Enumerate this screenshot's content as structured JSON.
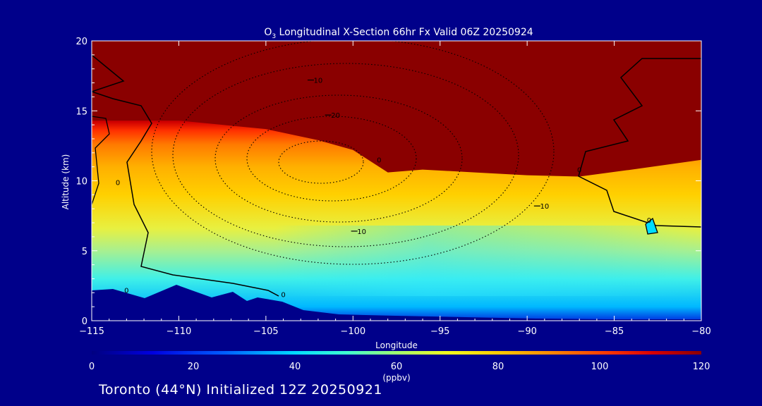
{
  "chart_data": {
    "type": "heatmap",
    "title_prefix": "O",
    "title_subscript": "3",
    "title_rest": " Longitudinal X-Section 66hr  Fx Valid 06Z 20250924",
    "xlabel": "Longitude",
    "ylabel": "Altitude (km)",
    "xlim": [
      -115,
      -80
    ],
    "ylim": [
      0,
      20
    ],
    "x_ticks": [
      -115,
      -110,
      -105,
      -100,
      -95,
      -90,
      -85,
      -80
    ],
    "x_tick_labels": [
      "−115",
      "−110",
      "−105",
      "−100",
      "−95",
      "−90",
      "−85",
      "−80"
    ],
    "y_ticks": [
      0,
      5,
      10,
      15,
      20
    ],
    "y_tick_labels": [
      "0",
      "5",
      "10",
      "15",
      "20"
    ],
    "colorbar": {
      "label": "(ppbv)",
      "range": [
        0,
        120
      ],
      "ticks": [
        0,
        20,
        40,
        60,
        80,
        100,
        120
      ],
      "tick_labels": [
        "0",
        "20",
        "40",
        "60",
        "80",
        "100",
        "120"
      ]
    },
    "field_description": "ozone mixing ratio; ~120+ ppbv above tropopause (~14 km at -115 to ~11 km at -80, dipping near -98), decreasing to ~10-20 ppbv near surface",
    "tropopause_profile": {
      "lon": [
        -115,
        -110,
        -105,
        -102,
        -100,
        -98,
        -96,
        -93,
        -90,
        -87,
        -84,
        -80
      ],
      "alt": [
        14.3,
        14.3,
        13.7,
        12.9,
        12.2,
        10.6,
        10.8,
        10.6,
        10.4,
        10.3,
        10.8,
        11.5
      ]
    },
    "contour_labels": [
      {
        "text": "10",
        "lon": -102,
        "alt": 17.0,
        "negative": true
      },
      {
        "text": "20",
        "lon": -101,
        "alt": 14.5,
        "negative": true
      },
      {
        "text": "10",
        "lon": -99.5,
        "alt": 6.2,
        "negative": true
      },
      {
        "text": "10",
        "lon": -89,
        "alt": 8.0,
        "negative": true
      },
      {
        "text": "0",
        "lon": -113.5,
        "alt": 9.7,
        "negative": false
      },
      {
        "text": "0",
        "lon": -113,
        "alt": 2.0,
        "negative": false
      },
      {
        "text": "0",
        "lon": -104,
        "alt": 1.7,
        "negative": false
      },
      {
        "text": "0",
        "lon": -98.5,
        "alt": 11.3,
        "negative": false
      },
      {
        "text": "0",
        "lon": -87,
        "alt": 10.6,
        "negative": false
      },
      {
        "text": "0",
        "lon": -83,
        "alt": 7.0,
        "negative": false
      }
    ]
  },
  "footer_text": "Toronto (44°N) Initialized 12Z 20250921"
}
